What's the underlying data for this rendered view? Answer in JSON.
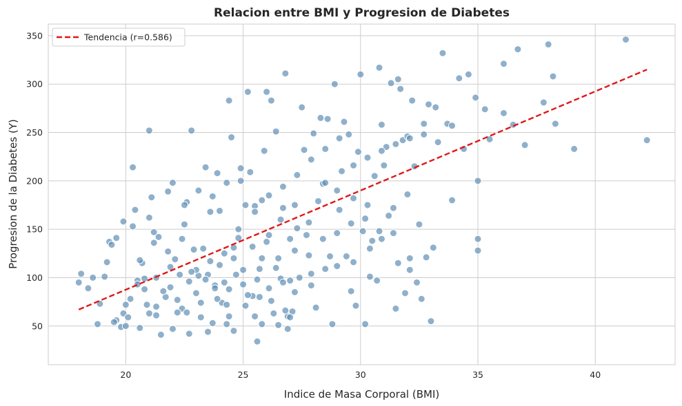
{
  "chart_data": {
    "type": "scatter",
    "title": "Relacion entre BMI y Progresion de Diabetes",
    "xlabel": "Indice de Masa Corporal (BMI)",
    "ylabel": "Progresion de la Diabetes (Y)",
    "xlim": [
      16.7,
      43.4
    ],
    "ylim": [
      10,
      362
    ],
    "xticks": [
      20,
      25,
      30,
      35,
      40
    ],
    "yticks": [
      50,
      100,
      150,
      200,
      250,
      300,
      350
    ],
    "grid": true,
    "legend_position": "top-left",
    "colors": {
      "points": "#5f8fb5",
      "trend": "#e01818"
    },
    "trend": {
      "label": "Tendencia (r=0.586)",
      "x": [
        18.0,
        42.2
      ],
      "y": [
        67,
        315
      ]
    },
    "points": [
      [
        18.0,
        95
      ],
      [
        18.1,
        104
      ],
      [
        18.4,
        89
      ],
      [
        18.6,
        100
      ],
      [
        18.8,
        52
      ],
      [
        18.9,
        73
      ],
      [
        19.1,
        101
      ],
      [
        19.2,
        116
      ],
      [
        19.3,
        137
      ],
      [
        19.4,
        134
      ],
      [
        19.6,
        141
      ],
      [
        19.6,
        56
      ],
      [
        19.8,
        49
      ],
      [
        19.9,
        158
      ],
      [
        19.9,
        63
      ],
      [
        20.0,
        50
      ],
      [
        20.1,
        59
      ],
      [
        20.2,
        78
      ],
      [
        20.3,
        214
      ],
      [
        20.3,
        153
      ],
      [
        20.4,
        170
      ],
      [
        20.5,
        97
      ],
      [
        20.6,
        48
      ],
      [
        20.7,
        115
      ],
      [
        20.8,
        99
      ],
      [
        20.9,
        72
      ],
      [
        21.0,
        252
      ],
      [
        21.0,
        162
      ],
      [
        21.1,
        183
      ],
      [
        21.2,
        136
      ],
      [
        21.3,
        100
      ],
      [
        21.3,
        61
      ],
      [
        21.4,
        142
      ],
      [
        21.5,
        41
      ],
      [
        21.7,
        80
      ],
      [
        21.8,
        189
      ],
      [
        21.9,
        111
      ],
      [
        22.0,
        198
      ],
      [
        22.1,
        119
      ],
      [
        22.2,
        77
      ],
      [
        22.3,
        103
      ],
      [
        22.4,
        68
      ],
      [
        22.5,
        155
      ],
      [
        22.6,
        178
      ],
      [
        22.7,
        96
      ],
      [
        22.8,
        252
      ],
      [
        22.9,
        129
      ],
      [
        23.0,
        84
      ],
      [
        23.1,
        102
      ],
      [
        23.2,
        59
      ],
      [
        23.3,
        130
      ],
      [
        23.4,
        214
      ],
      [
        23.5,
        103
      ],
      [
        23.6,
        168
      ],
      [
        23.7,
        53
      ],
      [
        23.8,
        92
      ],
      [
        23.9,
        208
      ],
      [
        24.0,
        169
      ],
      [
        24.1,
        74
      ],
      [
        24.2,
        95
      ],
      [
        24.3,
        72
      ],
      [
        24.4,
        283
      ],
      [
        24.5,
        245
      ],
      [
        24.6,
        131
      ],
      [
        24.7,
        103
      ],
      [
        24.8,
        150
      ],
      [
        24.9,
        200
      ],
      [
        25.0,
        108
      ],
      [
        25.1,
        175
      ],
      [
        25.2,
        292
      ],
      [
        25.3,
        209
      ],
      [
        25.4,
        81
      ],
      [
        25.5,
        174
      ],
      [
        25.6,
        34
      ],
      [
        25.7,
        109
      ],
      [
        25.8,
        180
      ],
      [
        25.9,
        231
      ],
      [
        26.0,
        292
      ],
      [
        26.1,
        144
      ],
      [
        26.2,
        283
      ],
      [
        26.3,
        63
      ],
      [
        26.4,
        251
      ],
      [
        26.5,
        120
      ],
      [
        26.6,
        99
      ],
      [
        26.7,
        172
      ],
      [
        26.8,
        311
      ],
      [
        26.9,
        60
      ],
      [
        27.0,
        97
      ],
      [
        27.1,
        65
      ],
      [
        27.2,
        175
      ],
      [
        27.3,
        151
      ],
      [
        27.4,
        100
      ],
      [
        27.5,
        276
      ],
      [
        27.6,
        232
      ],
      [
        27.7,
        144
      ],
      [
        27.8,
        123
      ],
      [
        27.9,
        92
      ],
      [
        28.0,
        249
      ],
      [
        28.1,
        69
      ],
      [
        28.2,
        179
      ],
      [
        28.3,
        265
      ],
      [
        28.4,
        197
      ],
      [
        28.5,
        233
      ],
      [
        28.6,
        264
      ],
      [
        28.7,
        122
      ],
      [
        28.8,
        52
      ],
      [
        28.9,
        300
      ],
      [
        29.0,
        146
      ],
      [
        29.1,
        170
      ],
      [
        29.2,
        210
      ],
      [
        29.3,
        261
      ],
      [
        29.4,
        122
      ],
      [
        29.5,
        248
      ],
      [
        29.6,
        86
      ],
      [
        29.7,
        182
      ],
      [
        29.8,
        71
      ],
      [
        29.9,
        230
      ],
      [
        30.0,
        310
      ],
      [
        30.1,
        148
      ],
      [
        30.2,
        52
      ],
      [
        30.3,
        175
      ],
      [
        30.4,
        101
      ],
      [
        30.5,
        138
      ],
      [
        30.6,
        205
      ],
      [
        30.7,
        97
      ],
      [
        30.8,
        317
      ],
      [
        30.9,
        258
      ],
      [
        31.0,
        216
      ],
      [
        31.1,
        235
      ],
      [
        31.2,
        164
      ],
      [
        31.3,
        301
      ],
      [
        31.4,
        146
      ],
      [
        31.5,
        68
      ],
      [
        31.6,
        305
      ],
      [
        31.7,
        295
      ],
      [
        31.8,
        242
      ],
      [
        31.9,
        84
      ],
      [
        32.0,
        246
      ],
      [
        32.1,
        108
      ],
      [
        32.2,
        283
      ],
      [
        32.3,
        215
      ],
      [
        32.4,
        95
      ],
      [
        32.5,
        155
      ],
      [
        32.6,
        78
      ],
      [
        32.7,
        248
      ],
      [
        32.8,
        121
      ],
      [
        32.9,
        279
      ],
      [
        33.0,
        55
      ],
      [
        33.1,
        131
      ],
      [
        33.2,
        276
      ],
      [
        33.5,
        332
      ],
      [
        33.7,
        259
      ],
      [
        33.9,
        180
      ],
      [
        34.2,
        306
      ],
      [
        34.4,
        233
      ],
      [
        34.6,
        310
      ],
      [
        34.9,
        286
      ],
      [
        35.0,
        200
      ],
      [
        35.0,
        140
      ],
      [
        35.0,
        128
      ],
      [
        35.3,
        274
      ],
      [
        35.5,
        243
      ],
      [
        36.1,
        321
      ],
      [
        36.1,
        270
      ],
      [
        36.5,
        258
      ],
      [
        36.7,
        336
      ],
      [
        37.0,
        237
      ],
      [
        37.8,
        281
      ],
      [
        38.0,
        341
      ],
      [
        38.2,
        308
      ],
      [
        38.3,
        259
      ],
      [
        39.1,
        233
      ],
      [
        41.3,
        346
      ],
      [
        42.2,
        242
      ],
      [
        22.0,
        47
      ],
      [
        22.7,
        42
      ],
      [
        23.5,
        44
      ],
      [
        24.3,
        52
      ],
      [
        24.6,
        45
      ],
      [
        25.5,
        60
      ],
      [
        25.8,
        52
      ],
      [
        26.5,
        51
      ],
      [
        26.9,
        47
      ],
      [
        27.0,
        59
      ],
      [
        20.8,
        88
      ],
      [
        21.3,
        70
      ],
      [
        21.9,
        90
      ],
      [
        22.6,
        64
      ],
      [
        23.2,
        74
      ],
      [
        23.8,
        89
      ],
      [
        24.4,
        88
      ],
      [
        25.0,
        93
      ],
      [
        25.6,
        98
      ],
      [
        26.1,
        89
      ],
      [
        26.7,
        95
      ],
      [
        27.2,
        85
      ],
      [
        27.9,
        104
      ],
      [
        28.5,
        109
      ],
      [
        29.0,
        112
      ],
      [
        29.7,
        116
      ],
      [
        30.4,
        130
      ],
      [
        30.9,
        140
      ],
      [
        31.6,
        115
      ],
      [
        32.1,
        120
      ],
      [
        20.6,
        118
      ],
      [
        21.2,
        147
      ],
      [
        21.8,
        127
      ],
      [
        22.4,
        140
      ],
      [
        23.0,
        108
      ],
      [
        23.6,
        117
      ],
      [
        24.2,
        125
      ],
      [
        24.8,
        141
      ],
      [
        25.4,
        132
      ],
      [
        26.0,
        137
      ],
      [
        26.6,
        160
      ],
      [
        27.2,
        128
      ],
      [
        27.8,
        157
      ],
      [
        28.4,
        140
      ],
      [
        29.0,
        190
      ],
      [
        29.6,
        156
      ],
      [
        30.2,
        161
      ],
      [
        30.8,
        148
      ],
      [
        31.4,
        172
      ],
      [
        32.0,
        186
      ],
      [
        22.5,
        175
      ],
      [
        23.1,
        190
      ],
      [
        23.7,
        184
      ],
      [
        24.3,
        198
      ],
      [
        24.9,
        213
      ],
      [
        25.5,
        168
      ],
      [
        26.1,
        185
      ],
      [
        26.7,
        194
      ],
      [
        27.3,
        206
      ],
      [
        27.9,
        222
      ],
      [
        28.5,
        198
      ],
      [
        29.1,
        244
      ],
      [
        29.7,
        216
      ],
      [
        30.3,
        224
      ],
      [
        30.9,
        231
      ],
      [
        31.5,
        238
      ],
      [
        32.1,
        244
      ],
      [
        32.7,
        259
      ],
      [
        33.3,
        240
      ],
      [
        33.9,
        257
      ],
      [
        21.6,
        86
      ],
      [
        22.2,
        64
      ],
      [
        22.8,
        106
      ],
      [
        23.4,
        98
      ],
      [
        24.0,
        113
      ],
      [
        24.6,
        120
      ],
      [
        25.2,
        82
      ],
      [
        25.8,
        120
      ],
      [
        26.4,
        110
      ],
      [
        27.0,
        140
      ],
      [
        19.5,
        54
      ],
      [
        20.0,
        72
      ],
      [
        20.5,
        93
      ],
      [
        21.0,
        63
      ],
      [
        23.9,
        78
      ],
      [
        24.4,
        60
      ],
      [
        25.1,
        71
      ],
      [
        25.7,
        80
      ],
      [
        26.2,
        76
      ],
      [
        26.8,
        66
      ]
    ]
  }
}
